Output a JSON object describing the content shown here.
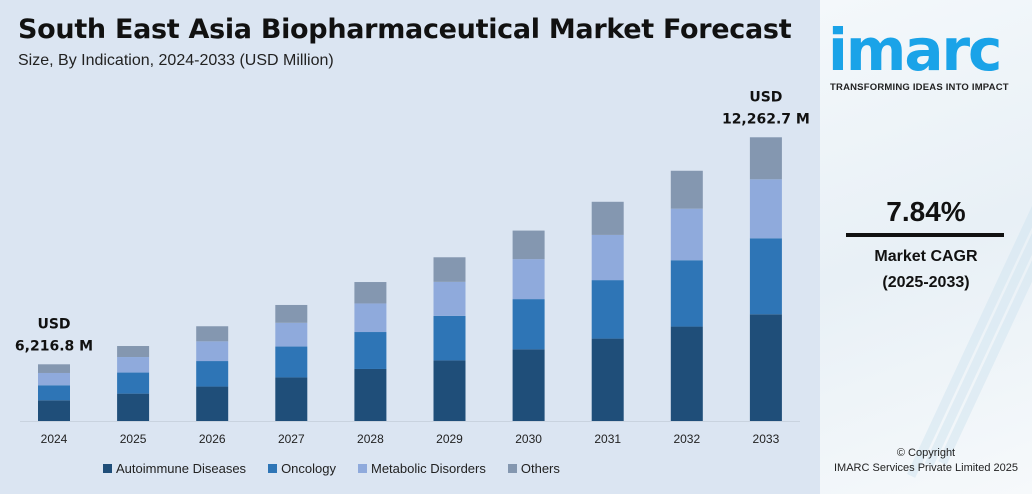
{
  "chart_data": {
    "type": "bar",
    "stacked": true,
    "title": "South East Asia Biopharmaceutical Market Forecast",
    "subtitle": "Size, By Indication, 2024-2033 (USD Million)",
    "categories": [
      "2024",
      "2025",
      "2026",
      "2027",
      "2028",
      "2029",
      "2030",
      "2031",
      "2032",
      "2033"
    ],
    "series": [
      {
        "name": "Autoimmune Diseases",
        "color": "#1f4e79",
        "values": [
          2269.1,
          2447,
          2628,
          2929,
          3148,
          3356,
          3678,
          3964,
          4291,
          4612
        ]
      },
      {
        "name": "Oncology",
        "color": "#2e75b6",
        "values": [
          1647.5,
          1884,
          1947,
          2074,
          2235,
          2467,
          2581,
          2813,
          3014,
          3285
        ]
      },
      {
        "name": "Metabolic Disorders",
        "color": "#8faadc",
        "values": [
          1349.0,
          1388,
          1504,
          1596,
          1729,
          1883,
          2053,
          2174,
          2344,
          2550
        ]
      },
      {
        "name": "Others",
        "color": "#8497b0",
        "values": [
          951.2,
          985,
          1151,
          1198,
          1296,
          1361,
          1466,
          1594,
          1722,
          1815.7
        ]
      }
    ],
    "annotations": [
      {
        "category": "2024",
        "line1": "USD",
        "line2": "6,216.8 M"
      },
      {
        "category": "2033",
        "line1": "USD",
        "line2": "12,262.7 M"
      }
    ],
    "legend": "bottom",
    "grid": false,
    "y_axis_visible": false
  },
  "side": {
    "logo": "imarc",
    "tagline": "TRANSFORMING IDEAS INTO IMPACT",
    "cagr_value": "7.84%",
    "cagr_label": "Market CAGR",
    "cagr_period": "(2025-2033)",
    "copyright": "© Copyright",
    "company": "IMARC Services Private Limited 2025"
  }
}
